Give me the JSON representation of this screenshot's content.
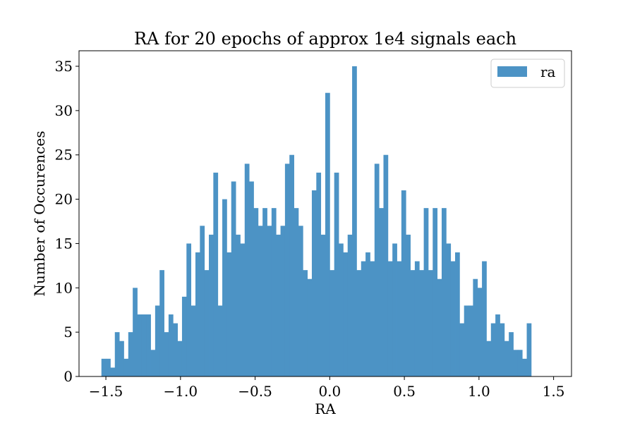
{
  "chart_data": {
    "type": "bar",
    "title": "RA for 20 epochs of approx 1e4 signals each",
    "xlabel": "RA",
    "ylabel": "Number of Occurences",
    "xlim": [
      -1.68,
      1.62
    ],
    "ylim": [
      0,
      36.75
    ],
    "xticks": [
      -1.5,
      -1.0,
      -0.5,
      0.0,
      0.5,
      1.0,
      1.5
    ],
    "xtick_labels": [
      "−1.5",
      "−1.0",
      "−0.5",
      "0.0",
      "0.5",
      "1.0",
      "1.5"
    ],
    "yticks": [
      0,
      5,
      10,
      15,
      20,
      25,
      30,
      35
    ],
    "ytick_labels": [
      "0",
      "5",
      "10",
      "15",
      "20",
      "25",
      "30",
      "35"
    ],
    "grid": false,
    "legend_position": "top-right",
    "bin_start": -1.53,
    "bin_width": 0.03,
    "series": [
      {
        "name": "ra",
        "color": "#4c93c5",
        "values": [
          2,
          2,
          1,
          5,
          4,
          2,
          5,
          10,
          7,
          7,
          7,
          3,
          8,
          12,
          5,
          7,
          6,
          4,
          9,
          15,
          8,
          14,
          17,
          12,
          16,
          23,
          8,
          20,
          14,
          22,
          16,
          15,
          24,
          22,
          19,
          17,
          19,
          17,
          19,
          16,
          17,
          24,
          25,
          19,
          17,
          12,
          11,
          21,
          23,
          16,
          32,
          12,
          23,
          15,
          14,
          16,
          35,
          12,
          13,
          14,
          13,
          24,
          19,
          25,
          13,
          15,
          13,
          21,
          16,
          12,
          13,
          12,
          19,
          12,
          19,
          11,
          19,
          15,
          13,
          14,
          6,
          8,
          8,
          11,
          10,
          13,
          4,
          6,
          7,
          6,
          4,
          5,
          3,
          3,
          2,
          6
        ]
      }
    ]
  }
}
